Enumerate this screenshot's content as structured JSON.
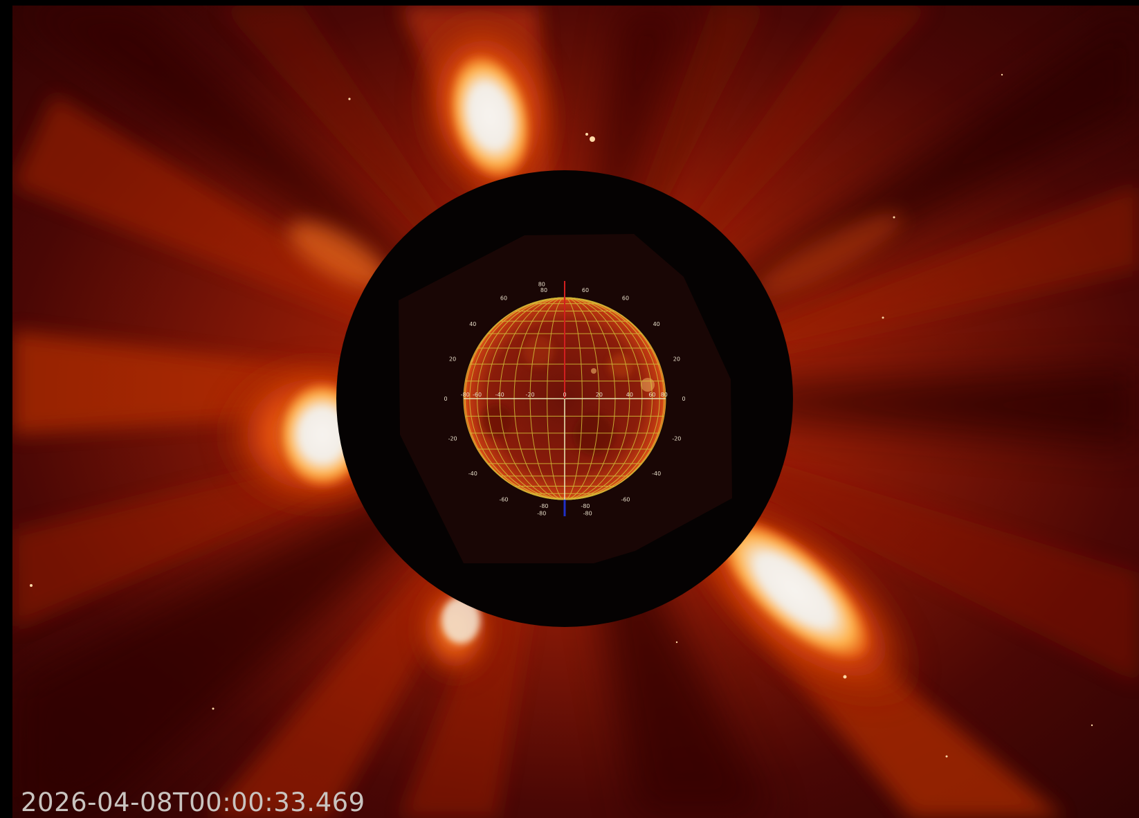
{
  "image": {
    "subject": "coronagraph",
    "timestamp": "2026-04-08T00:00:33.469",
    "colors": {
      "background": "#000000",
      "corona_dark": "#2e0303",
      "corona_mid": "#8c1a06",
      "corona_bright": "#ff8a1e",
      "corona_white": "#f4f1ec",
      "occulter": "#050202",
      "grid_lines": "#d4c43a",
      "axis_north": "#d21f1f",
      "axis_south": "#2030c8",
      "timestamp_text": "#c9c4c0"
    },
    "grid": {
      "left_labels": [
        "80",
        "60",
        "40",
        "20",
        "0",
        "-20",
        "-40",
        "-60",
        "-80"
      ],
      "right_labels": [
        "60",
        "40",
        "20",
        "0",
        "-20",
        "-40",
        "-60",
        "-80"
      ],
      "meridian_labels": [
        "-80",
        "-60",
        "-40",
        "-20",
        "0",
        "20",
        "40",
        "60",
        "80"
      ]
    }
  }
}
